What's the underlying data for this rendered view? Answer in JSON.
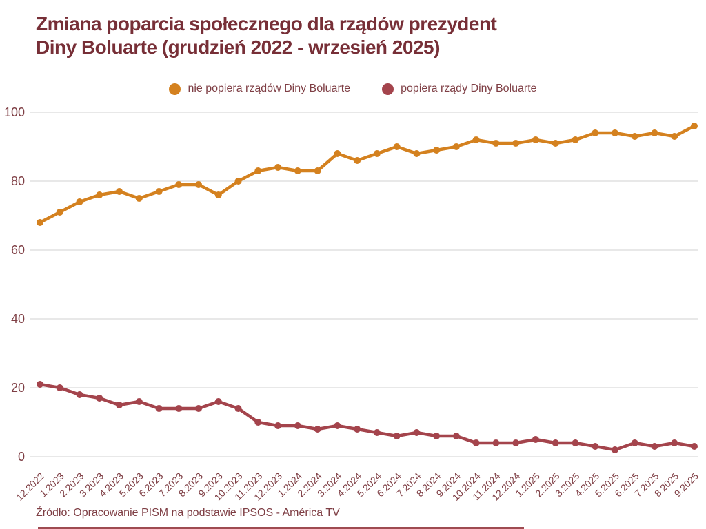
{
  "title": {
    "line1": "Zmiana poparcia społecznego dla rządów prezydent",
    "line2": "Diny Boluarte (grudzień 2022 - wrzesień 2025)"
  },
  "source": "Źródło: Opracowanie PISM na podstawie IPSOS - América TV",
  "colors": {
    "background": "#FFFFFF",
    "title_text": "#772F37",
    "axis_text": "#7E3E44",
    "grid": "#DBDBDB",
    "orange": "#D4811F",
    "maroon": "#A4444C",
    "bottom_line": "#8D2B33"
  },
  "legend": [
    {
      "label": "nie popiera rządów Diny Boluarte",
      "color": "#D4811F"
    },
    {
      "label": "popiera rządy Diny Boluarte",
      "color": "#A4444C"
    }
  ],
  "chart_data": {
    "type": "line",
    "title": "Zmiana poparcia społecznego dla rządów prezydent Diny Boluarte (grudzień 2022 - wrzesień 2025)",
    "categories": [
      "12.2022",
      "1.2023",
      "2.2023",
      "3.2023",
      "4.2023",
      "5.2023",
      "6.2023",
      "7.2023",
      "8.2023",
      "9.2023",
      "10.2023",
      "11.2023",
      "12.2023",
      "1.2024",
      "2.2024",
      "3.2024",
      "4.2024",
      "5.2024",
      "6.2024",
      "7.2024",
      "8.2024",
      "9.2024",
      "10.2024",
      "11.2024",
      "12.2024",
      "1.2025",
      "2.2025",
      "3.2025",
      "4.2025",
      "5.2025",
      "6.2025",
      "7.2025",
      "8.2025",
      "9.2025"
    ],
    "series": [
      {
        "name": "nie popiera rządów Diny Boluarte",
        "color": "#D4811F",
        "values": [
          68,
          71,
          74,
          76,
          77,
          75,
          77,
          79,
          79,
          76,
          80,
          83,
          84,
          83,
          83,
          88,
          86,
          88,
          90,
          88,
          89,
          90,
          92,
          91,
          91,
          92,
          91,
          92,
          94,
          94,
          93,
          94,
          93,
          96
        ]
      },
      {
        "name": "popiera rządy Diny Boluarte",
        "color": "#A4444C",
        "values": [
          21,
          20,
          18,
          17,
          15,
          16,
          14,
          14,
          14,
          16,
          14,
          10,
          9,
          9,
          8,
          9,
          8,
          7,
          6,
          7,
          6,
          6,
          4,
          4,
          4,
          5,
          4,
          4,
          3,
          2,
          4,
          3,
          4,
          3
        ]
      }
    ],
    "xlabel": "",
    "ylabel": "",
    "ylim": [
      0,
      100
    ],
    "yticks": [
      0,
      20,
      40,
      60,
      80,
      100
    ],
    "grid": "horizontal",
    "legend_position": "top"
  }
}
